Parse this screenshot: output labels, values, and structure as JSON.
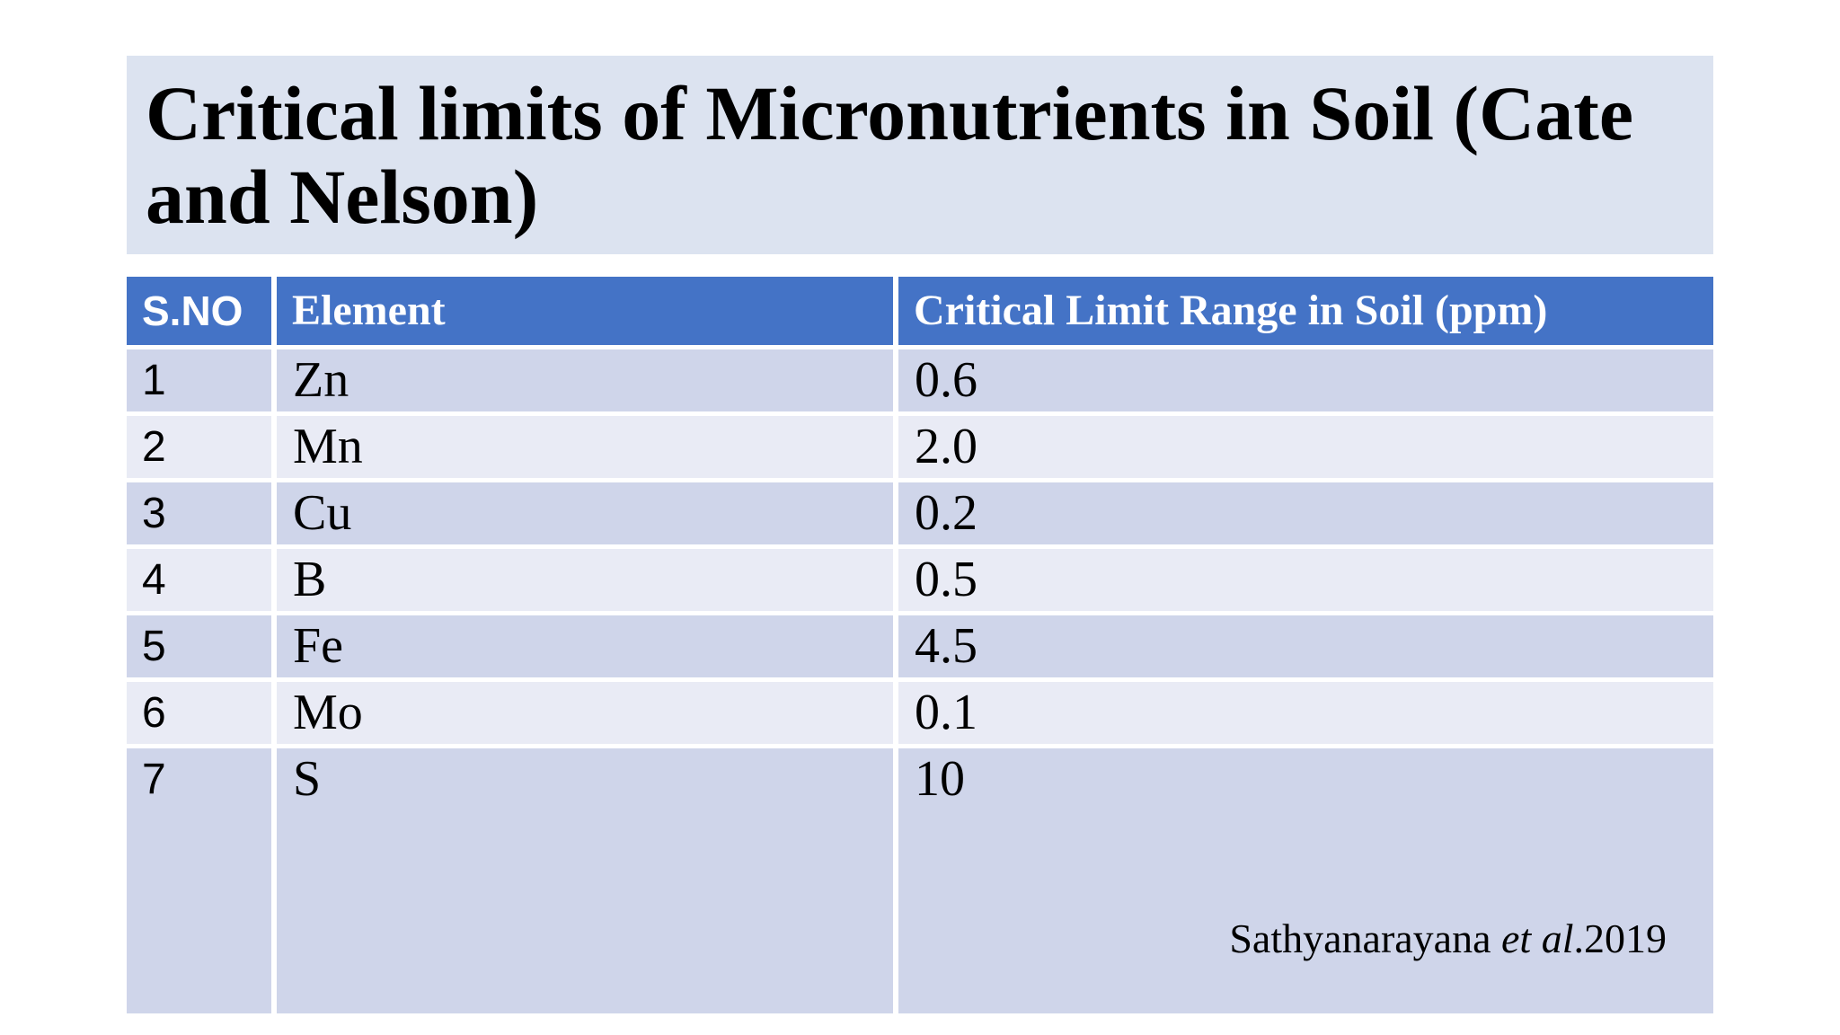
{
  "slide": {
    "title_line1": "Critical limits of Micronutrients in Soil (Cate",
    "title_line2": "and Nelson)"
  },
  "table": {
    "columns": [
      "S.NO",
      "Element",
      "Critical Limit Range in Soil (ppm)"
    ],
    "rows": [
      {
        "sno": "1",
        "element": "Zn",
        "value": "0.6"
      },
      {
        "sno": "2",
        "element": "Mn",
        "value": "2.0"
      },
      {
        "sno": "3",
        "element": "Cu",
        "value": "0.2"
      },
      {
        "sno": "4",
        "element": "B",
        "value": "0.5"
      },
      {
        "sno": "5",
        "element": "Fe",
        "value": "4.5"
      },
      {
        "sno": "6",
        "element": "Mo",
        "value": "0.1"
      },
      {
        "sno": "7",
        "element": "S",
        "value": "10"
      }
    ],
    "citation": {
      "prefix": "Sathyanarayana ",
      "italic": "et al",
      "suffix": ".2019"
    }
  },
  "colors": {
    "header_bg": "#4473c6",
    "row_odd": "#cfd5ea",
    "row_even": "#e9ebf5",
    "title_bg": "#dce3f0",
    "text": "#000000",
    "header_text": "#ffffff"
  }
}
